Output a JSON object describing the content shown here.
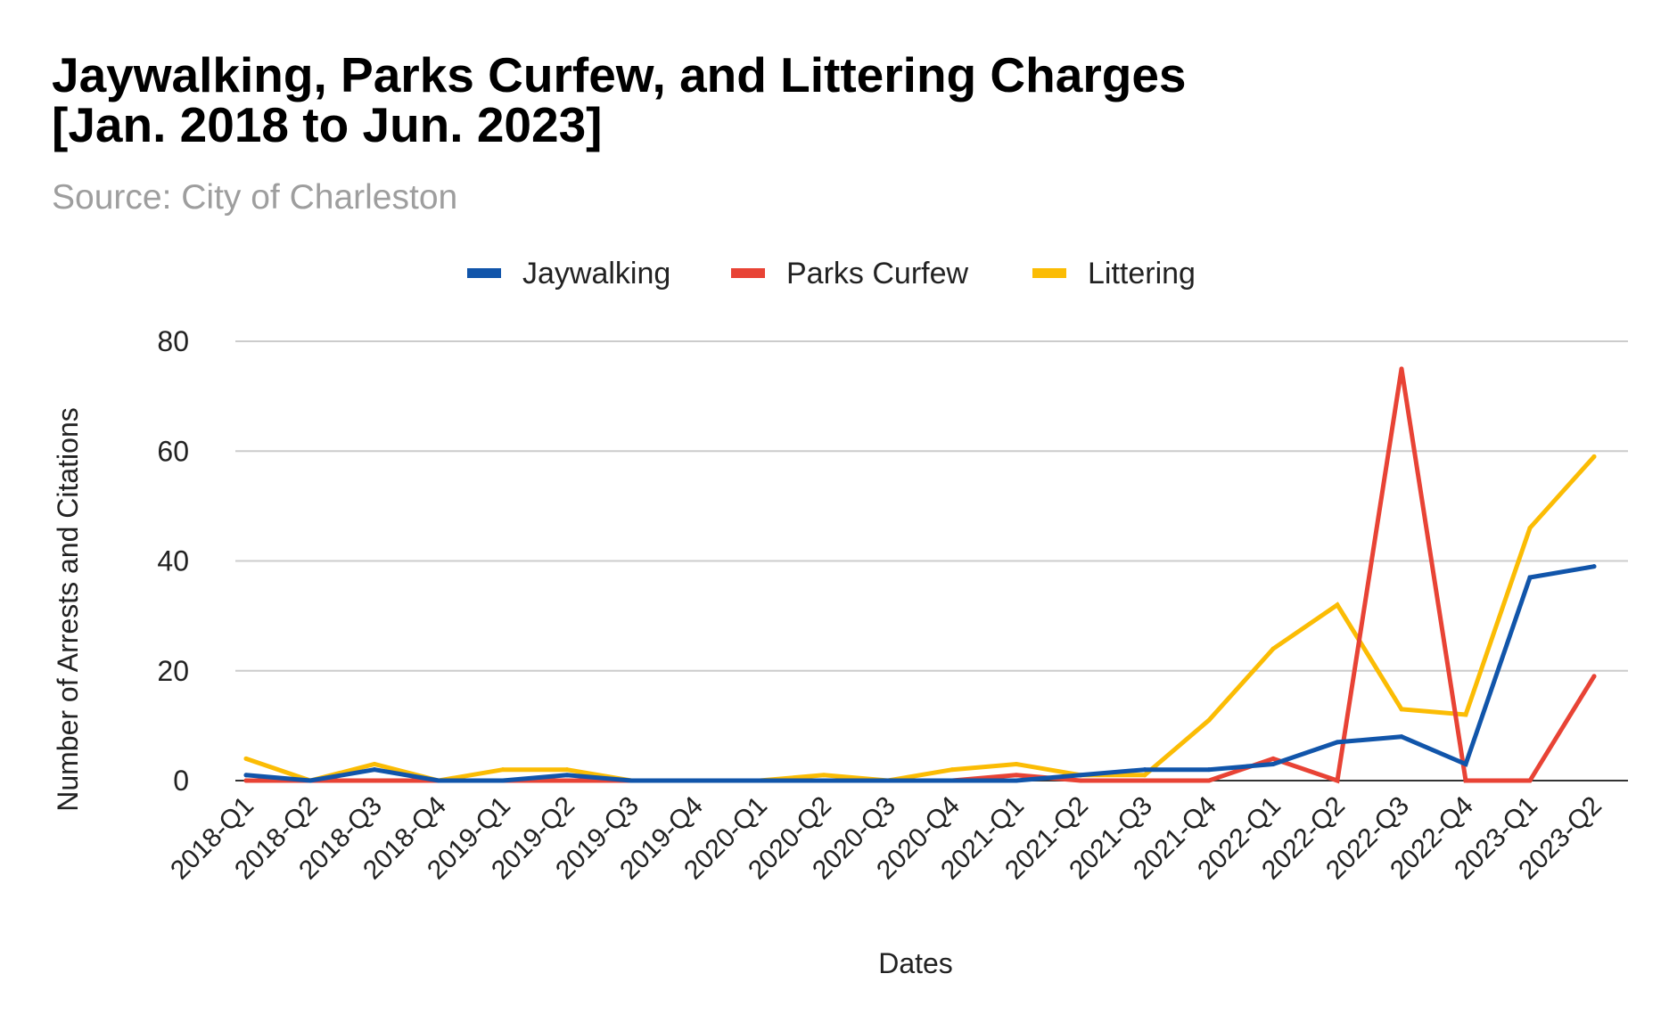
{
  "chart_data": {
    "type": "line",
    "title_line1": "Jaywalking, Parks Curfew, and Littering Charges",
    "title_line2": "[Jan. 2018 to Jun. 2023]",
    "subtitle": "Source: City of Charleston",
    "xlabel": "Dates",
    "ylabel": "Number of Arrests and Citations",
    "ylim": [
      0,
      80
    ],
    "yticks": [
      "0",
      "20",
      "40",
      "60",
      "80"
    ],
    "grid": true,
    "legend_position": "top",
    "categories": [
      "2018-Q1",
      "2018-Q2",
      "2018-Q3",
      "2018-Q4",
      "2019-Q1",
      "2019-Q2",
      "2019-Q3",
      "2019-Q4",
      "2020-Q1",
      "2020-Q2",
      "2020-Q3",
      "2020-Q4",
      "2021-Q1",
      "2021-Q2",
      "2021-Q3",
      "2021-Q4",
      "2022-Q1",
      "2022-Q2",
      "2022-Q3",
      "2022-Q4",
      "2023-Q1",
      "2023-Q2"
    ],
    "series": [
      {
        "name": "Jaywalking",
        "color": "#1155aa",
        "values": [
          1,
          0,
          2,
          0,
          0,
          1,
          0,
          0,
          0,
          0,
          0,
          0,
          0,
          1,
          2,
          2,
          3,
          7,
          8,
          3,
          37,
          39
        ]
      },
      {
        "name": "Parks Curfew",
        "color": "#e84335",
        "values": [
          0,
          0,
          0,
          0,
          0,
          0,
          0,
          0,
          0,
          0,
          0,
          0,
          1,
          0,
          0,
          0,
          4,
          0,
          75,
          0,
          0,
          19
        ]
      },
      {
        "name": "Littering",
        "color": "#fbbc04",
        "values": [
          4,
          0,
          3,
          0,
          2,
          2,
          0,
          0,
          0,
          1,
          0,
          2,
          3,
          1,
          1,
          11,
          24,
          32,
          13,
          12,
          46,
          59
        ]
      }
    ]
  }
}
